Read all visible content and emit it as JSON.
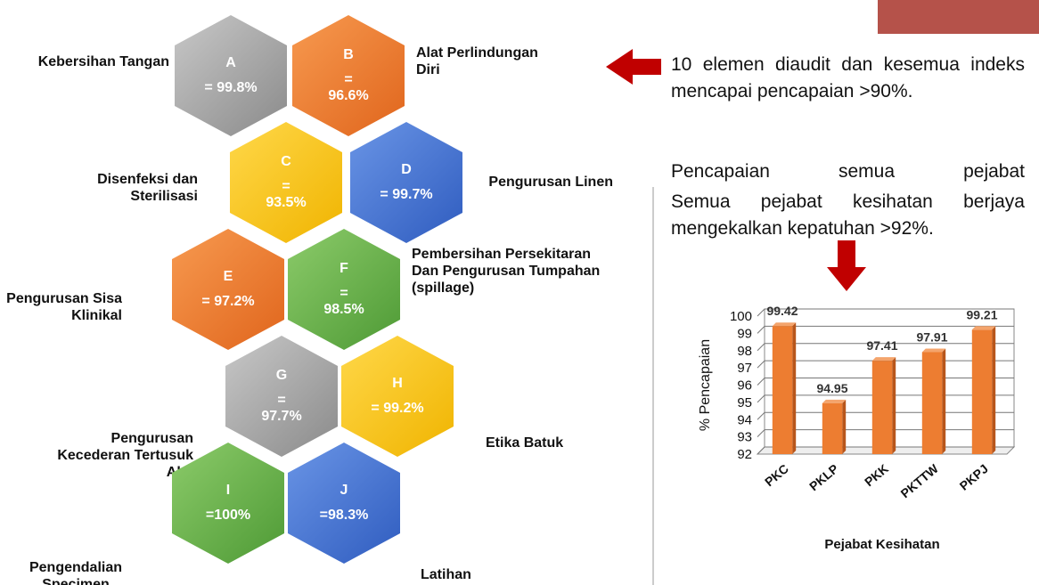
{
  "hexagons": [
    {
      "letter": "A",
      "value": "= 99.8%",
      "label": "Kebersihan Tangan"
    },
    {
      "letter": "B",
      "value": "=\n96.6%",
      "label": "Alat Perlindungan Diri"
    },
    {
      "letter": "C",
      "value": "=\n93.5%",
      "label": "Disenfeksi dan Sterilisasi"
    },
    {
      "letter": "D",
      "value": "= 99.7%",
      "label": "Pengurusan Linen"
    },
    {
      "letter": "E",
      "value": "= 97.2%",
      "label": "Pengurusan Sisa Klinikal"
    },
    {
      "letter": "F",
      "value": "=\n98.5%",
      "label": "Pembersihan Persekitaran Dan Pengurusan Tumpahan (spillage)"
    },
    {
      "letter": "G",
      "value": "=\n97.7%",
      "label": "Pengurusan Kecederan Tertusuk Alat"
    },
    {
      "letter": "H",
      "value": "= 99.2%",
      "label": "Etika Batuk"
    },
    {
      "letter": "I",
      "value": "=100%",
      "label": "Pengendalian Specimen"
    },
    {
      "letter": "J",
      "value": "=98.3%",
      "label": "Latihan"
    }
  ],
  "side_text": {
    "summary": "10 elemen diaudit dan kesemua indeks mencapai pencapaian >90%.",
    "heading": "Pencapaian semua pejabat",
    "detail": "Semua pejabat kesihatan berjaya mengekalkan kepatuhan >92%."
  },
  "chart_data": {
    "type": "bar",
    "ylabel": "% Pencapaian",
    "xlabel": "Pejabat Kesihatan",
    "categories": [
      "PKC",
      "PKLP",
      "PKK",
      "PKTTW",
      "PKPJ"
    ],
    "values": [
      99.42,
      94.95,
      97.41,
      97.91,
      99.21
    ],
    "color": "#ed7d31",
    "ylim": [
      92,
      100
    ],
    "yticks": [
      92,
      93,
      94,
      95,
      96,
      97,
      98,
      99,
      100
    ],
    "grid": true
  }
}
